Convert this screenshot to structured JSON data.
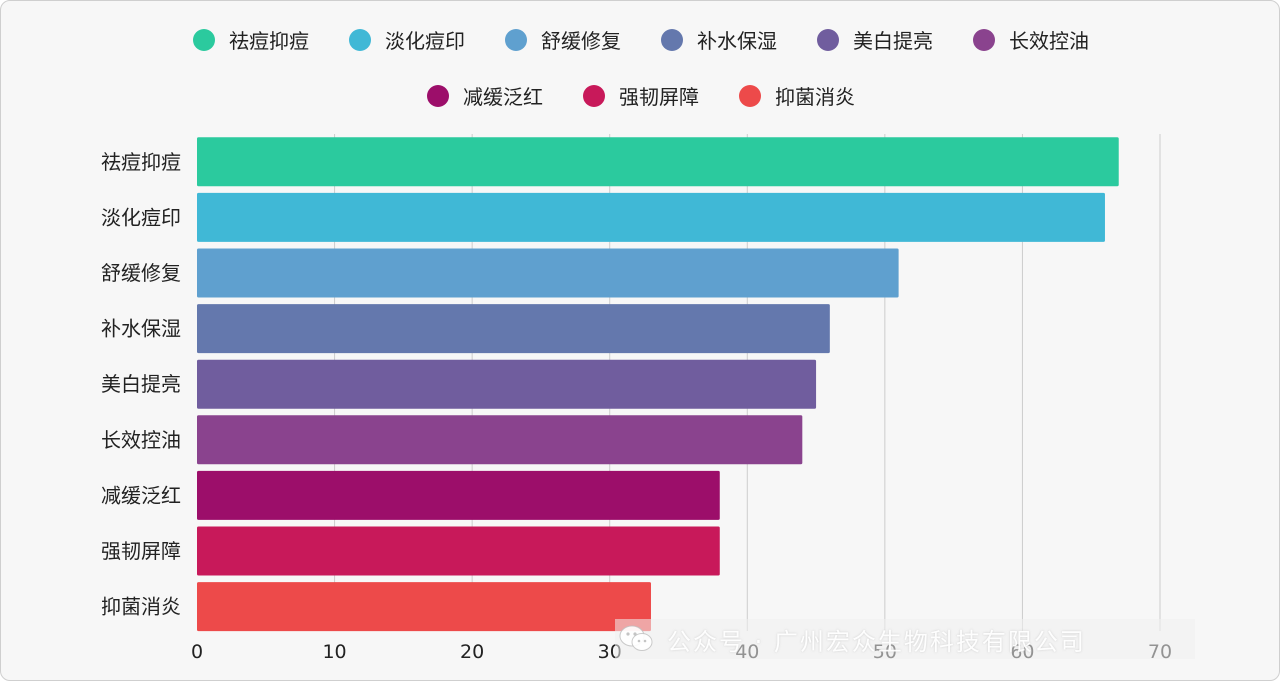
{
  "chart_data": {
    "type": "bar",
    "orientation": "horizontal",
    "categories": [
      "祛痘抑痘",
      "淡化痘印",
      "舒缓修复",
      "补水保湿",
      "美白提亮",
      "长效控油",
      "减缓泛红",
      "强韧屏障",
      "抑菌消炎"
    ],
    "values": [
      67,
      66,
      51,
      46,
      45,
      44,
      38,
      38,
      33
    ],
    "colors": [
      "#2bca9e",
      "#40b8d6",
      "#5fa0cf",
      "#6478ad",
      "#705d9e",
      "#8a438e",
      "#9c0e6a",
      "#c8195a",
      "#ed4a4a"
    ],
    "xlim": [
      0,
      70
    ],
    "xticks": [
      0,
      10,
      20,
      30,
      40,
      50,
      60,
      70
    ],
    "grid": true,
    "legend_position": "top",
    "gridline_color": "#cccccc",
    "tick_label_color": "#222222"
  },
  "legend": {
    "row1": [
      {
        "label": "祛痘抑痘",
        "color": "#2bca9e"
      },
      {
        "label": "淡化痘印",
        "color": "#40b8d6"
      },
      {
        "label": "舒缓修复",
        "color": "#5fa0cf"
      },
      {
        "label": "补水保湿",
        "color": "#6478ad"
      },
      {
        "label": "美白提亮",
        "color": "#705d9e"
      },
      {
        "label": "长效控油",
        "color": "#8a438e"
      }
    ],
    "row2": [
      {
        "label": "减缓泛红",
        "color": "#9c0e6a"
      },
      {
        "label": "强韧屏障",
        "color": "#c8195a"
      },
      {
        "label": "抑菌消炎",
        "color": "#ed4a4a"
      }
    ]
  },
  "watermark": {
    "text": "公众号 · 广州宏众生物科技有限公司",
    "icon": "wechat-icon"
  }
}
